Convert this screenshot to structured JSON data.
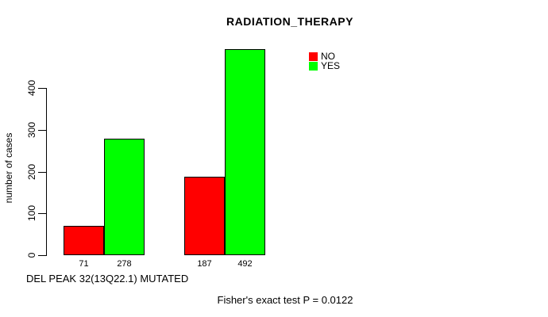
{
  "chart_data": {
    "type": "bar",
    "title": "RADIATION_THERAPY",
    "xlabel": "DEL PEAK 32(13Q22.1) MUTATED",
    "ylabel": "number of cases",
    "categories": [
      "",
      ""
    ],
    "series": [
      {
        "name": "NO",
        "color": "#ff0000",
        "values": [
          71,
          187
        ]
      },
      {
        "name": "YES",
        "color": "#00ff00",
        "values": [
          278,
          492
        ]
      }
    ],
    "value_labels": [
      [
        71,
        278
      ],
      [
        187,
        492
      ]
    ],
    "yticks": [
      0,
      100,
      200,
      300,
      400
    ],
    "ylim": [
      0,
      500
    ],
    "grid": false,
    "legend_position": "top-right",
    "annotation": "Fisher's exact test P = 0.0122",
    "bar_border_color": "#000000",
    "axis_color": "#000000"
  }
}
